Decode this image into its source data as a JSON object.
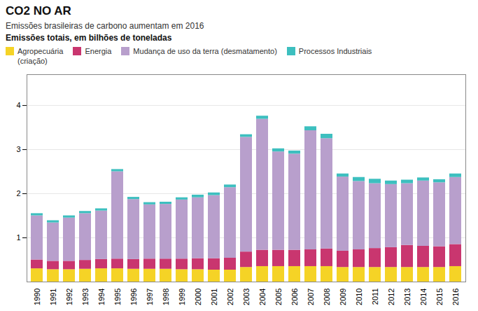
{
  "chart_data": {
    "type": "bar",
    "stacked": true,
    "title": "CO2 NO AR",
    "subtitle": "Emissões brasileiras de carbono aumentam em 2016",
    "ylabel": "Emissões totais, em bilhões de toneladas",
    "categories": [
      "1990",
      "1991",
      "1992",
      "1993",
      "1994",
      "1995",
      "1996",
      "1997",
      "1998",
      "1999",
      "2000",
      "2001",
      "2002",
      "2003",
      "2004",
      "2005",
      "2006",
      "2007",
      "2008",
      "2009",
      "2010",
      "2011",
      "2012",
      "2013",
      "2014",
      "2015",
      "2016"
    ],
    "series": [
      {
        "name": "Agropecuária\n(criação)",
        "color": "#F5D326",
        "values": [
          0.3,
          0.28,
          0.28,
          0.29,
          0.3,
          0.3,
          0.29,
          0.29,
          0.29,
          0.28,
          0.28,
          0.27,
          0.27,
          0.33,
          0.35,
          0.35,
          0.35,
          0.35,
          0.35,
          0.33,
          0.33,
          0.33,
          0.33,
          0.33,
          0.33,
          0.33,
          0.35
        ]
      },
      {
        "name": "Energia",
        "color": "#C9366F",
        "values": [
          0.2,
          0.19,
          0.19,
          0.2,
          0.21,
          0.22,
          0.22,
          0.23,
          0.23,
          0.24,
          0.25,
          0.26,
          0.27,
          0.35,
          0.37,
          0.37,
          0.37,
          0.38,
          0.4,
          0.37,
          0.4,
          0.43,
          0.45,
          0.5,
          0.48,
          0.47,
          0.5
        ]
      },
      {
        "name": "Mudança de uso da terra (desmatamento)",
        "color": "#B89FCC",
        "values": [
          1.0,
          0.87,
          0.98,
          1.06,
          1.1,
          1.98,
          1.36,
          1.23,
          1.24,
          1.34,
          1.38,
          1.43,
          1.6,
          2.6,
          2.97,
          2.23,
          2.18,
          2.7,
          2.5,
          1.68,
          1.55,
          1.47,
          1.43,
          1.4,
          1.48,
          1.45,
          1.52
        ]
      },
      {
        "name": "Processos Industriais",
        "color": "#3DBFBF",
        "values": [
          0.05,
          0.05,
          0.05,
          0.05,
          0.05,
          0.05,
          0.05,
          0.05,
          0.05,
          0.05,
          0.06,
          0.06,
          0.06,
          0.06,
          0.07,
          0.07,
          0.07,
          0.09,
          0.1,
          0.07,
          0.09,
          0.1,
          0.08,
          0.08,
          0.07,
          0.07,
          0.08
        ]
      }
    ],
    "ylim": [
      0,
      4.7
    ],
    "yticks": [
      1,
      2,
      3,
      4
    ],
    "grid": true
  }
}
